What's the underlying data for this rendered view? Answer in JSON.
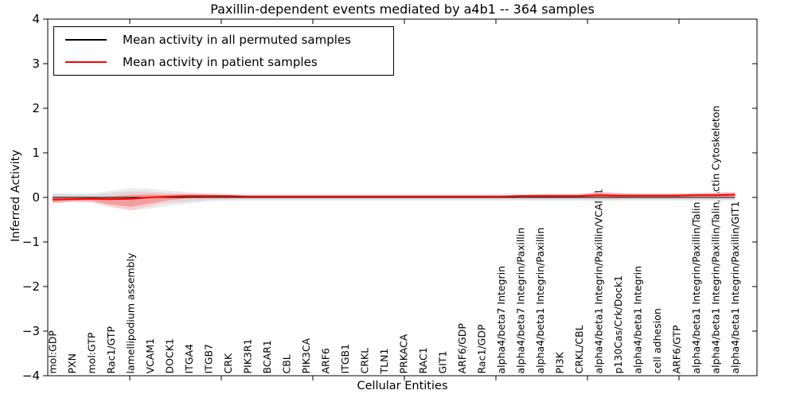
{
  "title": "Paxillin-dependent events mediated by a4b1 -- 364 samples",
  "axes": {
    "ylabel": "Inferred Activity",
    "xlabel": "Cellular Entities",
    "ytick_labels": [
      "4",
      "3",
      "2",
      "1",
      "0",
      "−1",
      "−2",
      "−3",
      "−4"
    ],
    "ytick_values": [
      4,
      3,
      2,
      1,
      0,
      -1,
      -2,
      -3,
      -4
    ]
  },
  "legend": {
    "entries": [
      {
        "label": "Mean activity in all permuted samples",
        "color": "#000000"
      },
      {
        "label": "Mean activity in patient samples",
        "color": "#ff0000"
      }
    ]
  },
  "chart_data": {
    "type": "line",
    "title": "Paxillin-dependent events mediated by a4b1 -- 364 samples",
    "xlabel": "Cellular Entities",
    "ylabel": "Inferred Activity",
    "ylim": [
      -4,
      4
    ],
    "grid": false,
    "legend_position": "upper left",
    "reference_line": {
      "y": 0,
      "style": "dotted",
      "color": "#000000"
    },
    "categories": [
      "mol:GDP",
      "PXN",
      "mol:GTP",
      "Rac1/GTP",
      "lamellipodium assembly",
      "VCAM1",
      "DOCK1",
      "ITGA4",
      "ITGB7",
      "CRK",
      "PIK3R1",
      "BCAR1",
      "CBL",
      "PIK3CA",
      "ARF6",
      "ITGB1",
      "CRKL",
      "TLN1",
      "PRKACA",
      "RAC1",
      "GIT1",
      "ARF6/GDP",
      "Rac1/GDP",
      "alpha4/beta7 Integrin",
      "alpha4/beta7 Integrin/Paxillin",
      "alpha4/beta1 Integrin/Paxillin",
      "PI3K",
      "CRKL/CBL",
      "alpha4/beta1 Integrin/Paxillin/VCAM1",
      "p130Cas/Crk/Dock1",
      "alpha4/beta1 Integrin",
      "cell adhesion",
      "ARF6/GTP",
      "alpha4/beta1 Integrin/Paxillin/Talin",
      "alpha4/beta1 Integrin/Paxillin/Talin/Actin Cytoskeleton",
      "alpha4/beta1 Integrin/Paxillin/GIT1"
    ],
    "series": [
      {
        "name": "Mean activity in all permuted samples",
        "color": "#000000",
        "band_color": "#d9d9d9",
        "values": [
          0,
          0,
          0,
          0,
          0,
          0,
          0,
          0,
          0,
          0,
          0,
          0,
          0,
          0,
          0,
          0,
          0,
          0,
          0,
          0,
          0,
          0,
          0,
          0,
          0,
          0,
          0,
          0,
          0,
          0,
          0,
          0,
          0,
          0,
          0,
          0
        ],
        "band_upper": [
          0.07,
          0.06,
          0.06,
          0.1,
          0.14,
          0.13,
          0.1,
          0.08,
          0.06,
          0.05,
          0.05,
          0.05,
          0.05,
          0.05,
          0.05,
          0.05,
          0.05,
          0.05,
          0.05,
          0.05,
          0.05,
          0.05,
          0.05,
          0.05,
          0.05,
          0.05,
          0.05,
          0.05,
          0.07,
          0.06,
          0.06,
          0.06,
          0.06,
          0.06,
          0.07,
          0.07
        ],
        "band_lower": [
          -0.09,
          -0.07,
          -0.08,
          -0.14,
          -0.19,
          -0.17,
          -0.12,
          -0.09,
          -0.06,
          -0.05,
          -0.05,
          -0.05,
          -0.05,
          -0.05,
          -0.05,
          -0.05,
          -0.05,
          -0.05,
          -0.05,
          -0.05,
          -0.05,
          -0.05,
          -0.05,
          -0.05,
          -0.05,
          -0.05,
          -0.05,
          -0.05,
          -0.06,
          -0.05,
          -0.05,
          -0.05,
          -0.05,
          -0.05,
          -0.05,
          -0.05
        ]
      },
      {
        "name": "Mean activity in patient samples",
        "color": "#ff0000",
        "band_color": "#f0a0a0",
        "values": [
          -0.05,
          -0.04,
          -0.03,
          -0.04,
          -0.03,
          0.0,
          0.02,
          0.03,
          0.03,
          0.03,
          0.02,
          0.02,
          0.02,
          0.02,
          0.02,
          0.02,
          0.02,
          0.02,
          0.02,
          0.02,
          0.02,
          0.02,
          0.02,
          0.02,
          0.03,
          0.03,
          0.03,
          0.03,
          0.05,
          0.04,
          0.04,
          0.04,
          0.04,
          0.05,
          0.05,
          0.06
        ],
        "band_upper": [
          -0.01,
          0.0,
          0.0,
          0.02,
          0.06,
          0.07,
          0.06,
          0.07,
          0.06,
          0.05,
          0.04,
          0.04,
          0.04,
          0.04,
          0.04,
          0.04,
          0.04,
          0.04,
          0.04,
          0.04,
          0.04,
          0.04,
          0.04,
          0.04,
          0.05,
          0.06,
          0.06,
          0.06,
          0.1,
          0.08,
          0.07,
          0.07,
          0.07,
          0.08,
          0.09,
          0.1
        ],
        "band_lower": [
          -0.11,
          -0.08,
          -0.08,
          -0.16,
          -0.21,
          -0.14,
          -0.06,
          -0.02,
          -0.01,
          -0.01,
          0.0,
          0.0,
          0.0,
          0.0,
          0.0,
          0.0,
          0.0,
          0.0,
          0.0,
          0.0,
          0.0,
          0.0,
          0.0,
          0.0,
          0.0,
          0.0,
          0.0,
          0.0,
          0.01,
          0.0,
          0.01,
          0.01,
          0.01,
          0.02,
          0.02,
          0.02
        ]
      }
    ]
  }
}
